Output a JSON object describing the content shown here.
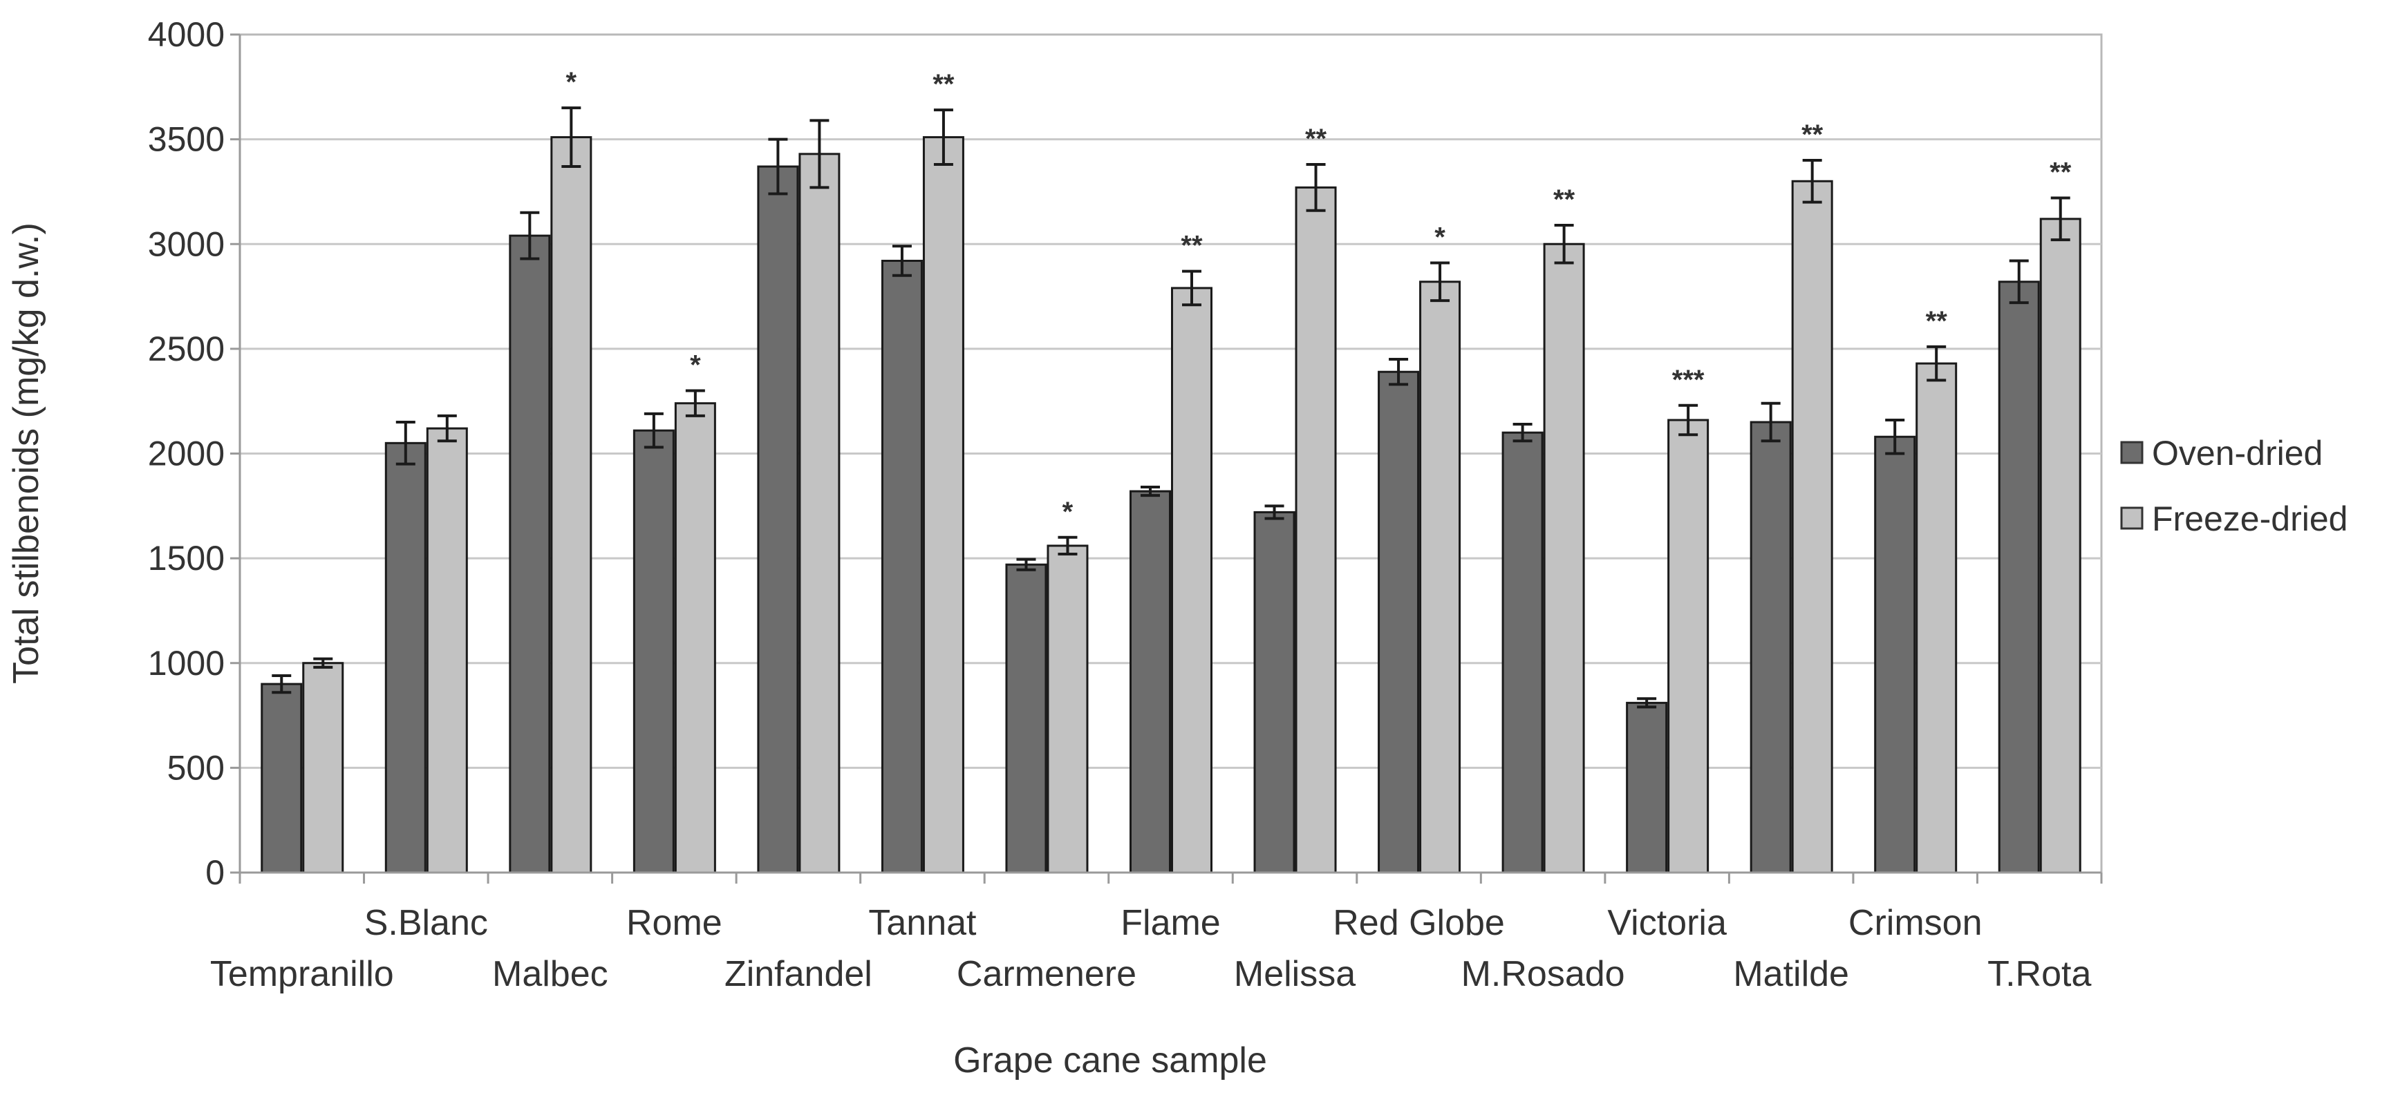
{
  "chart_data": {
    "type": "bar",
    "xlabel": "Grape cane sample",
    "ylabel": "Total stilbenoids (mg/kg d.w.)",
    "ylim": [
      0,
      4000
    ],
    "yticks": [
      0,
      500,
      1000,
      1500,
      2000,
      2500,
      3000,
      3500,
      4000
    ],
    "grid": true,
    "legend_position": "right",
    "categories": [
      "Tempranillo",
      "S.Blanc",
      "Malbec",
      "Rome",
      "Zinfandel",
      "Tannat",
      "Carmenere",
      "Flame",
      "Melissa",
      "Red Globe",
      "M.Rosado",
      "Victoria",
      "Matilde",
      "Crimson",
      "T.Rota"
    ],
    "series": [
      {
        "name": "Oven-dried",
        "color": "#6d6d6d",
        "values": [
          900,
          2050,
          3040,
          2110,
          3370,
          2920,
          1470,
          1820,
          1720,
          2390,
          2100,
          810,
          2150,
          2080,
          2820
        ],
        "errors": [
          40,
          100,
          110,
          80,
          130,
          70,
          25,
          20,
          30,
          60,
          40,
          20,
          90,
          80,
          100
        ]
      },
      {
        "name": "Freeze-dried",
        "color": "#c2c2c2",
        "values": [
          1000,
          2120,
          3510,
          2240,
          3430,
          3510,
          1560,
          2790,
          3270,
          2820,
          3000,
          2160,
          3300,
          2430,
          3120
        ],
        "errors": [
          20,
          60,
          140,
          60,
          160,
          130,
          40,
          80,
          110,
          90,
          90,
          70,
          100,
          80,
          100
        ]
      }
    ],
    "annotations": [
      "",
      "",
      "*",
      "*",
      "",
      "**",
      "*",
      "**",
      "**",
      "*",
      "**",
      "***",
      "**",
      "**",
      "**"
    ]
  }
}
